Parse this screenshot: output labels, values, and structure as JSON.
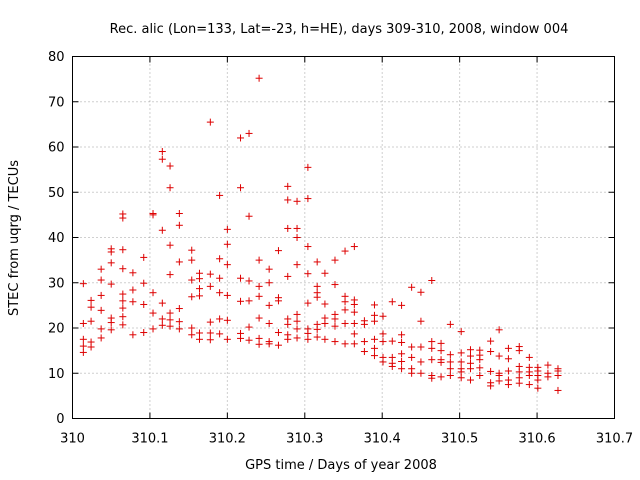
{
  "chart_data": {
    "type": "scatter",
    "title": "Rec. alic (Lon=133, Lat=-23, h=HE), days 309-310, 2008, window 004",
    "xlabel": "GPS time / Days of year 2008",
    "ylabel": "STEC from uqrg / TECUs",
    "xlim": [
      310,
      310.7
    ],
    "ylim": [
      0,
      80
    ],
    "xticks": [
      310,
      310.1,
      310.2,
      310.3,
      310.4,
      310.5,
      310.6,
      310.7
    ],
    "xtick_labels": [
      "310",
      "310.1",
      "310.2",
      "310.3",
      "310.4",
      "310.5",
      "310.6",
      "310.7"
    ],
    "yticks": [
      0,
      10,
      20,
      30,
      40,
      50,
      60,
      70,
      80
    ],
    "ytick_labels": [
      "0",
      "10",
      "20",
      "30",
      "40",
      "50",
      "60",
      "70",
      "80"
    ],
    "grid": true,
    "marker": "plus",
    "color": "#dd0000",
    "series": [
      {
        "name": "STEC",
        "points": [
          [
            310.014,
            29.8
          ],
          [
            310.014,
            21.0
          ],
          [
            310.014,
            17.5
          ],
          [
            310.014,
            16.0
          ],
          [
            310.014,
            14.6
          ],
          [
            310.024,
            26.1
          ],
          [
            310.024,
            24.6
          ],
          [
            310.024,
            21.5
          ],
          [
            310.024,
            16.9
          ],
          [
            310.024,
            15.8
          ],
          [
            310.037,
            33.0
          ],
          [
            310.037,
            30.6
          ],
          [
            310.037,
            27.2
          ],
          [
            310.037,
            23.9
          ],
          [
            310.037,
            19.8
          ],
          [
            310.037,
            17.8
          ],
          [
            310.05,
            37.5
          ],
          [
            310.05,
            36.8
          ],
          [
            310.05,
            34.4
          ],
          [
            310.05,
            29.7
          ],
          [
            310.05,
            22.2
          ],
          [
            310.05,
            21.2
          ],
          [
            310.05,
            19.6
          ],
          [
            310.065,
            45.2
          ],
          [
            310.065,
            44.3
          ],
          [
            310.065,
            37.3
          ],
          [
            310.065,
            33.1
          ],
          [
            310.065,
            27.5
          ],
          [
            310.065,
            26.0
          ],
          [
            310.065,
            24.4
          ],
          [
            310.065,
            22.5
          ],
          [
            310.065,
            20.7
          ],
          [
            310.078,
            32.2
          ],
          [
            310.078,
            28.4
          ],
          [
            310.078,
            25.8
          ],
          [
            310.078,
            18.5
          ],
          [
            310.092,
            35.6
          ],
          [
            310.092,
            29.9
          ],
          [
            310.092,
            25.2
          ],
          [
            310.092,
            19.0
          ],
          [
            310.104,
            45.3
          ],
          [
            310.104,
            45.0
          ],
          [
            310.104,
            27.8
          ],
          [
            310.104,
            23.3
          ],
          [
            310.104,
            19.8
          ],
          [
            310.116,
            59.0
          ],
          [
            310.116,
            57.3
          ],
          [
            310.116,
            41.6
          ],
          [
            310.116,
            25.5
          ],
          [
            310.116,
            22.0
          ],
          [
            310.116,
            20.6
          ],
          [
            310.126,
            55.8
          ],
          [
            310.126,
            51.0
          ],
          [
            310.126,
            38.3
          ],
          [
            310.126,
            31.8
          ],
          [
            310.126,
            23.3
          ],
          [
            310.126,
            21.8
          ],
          [
            310.126,
            20.4
          ],
          [
            310.138,
            45.3
          ],
          [
            310.138,
            42.7
          ],
          [
            310.138,
            34.6
          ],
          [
            310.138,
            24.3
          ],
          [
            310.138,
            21.4
          ],
          [
            310.138,
            19.8
          ],
          [
            310.154,
            37.2
          ],
          [
            310.154,
            35.0
          ],
          [
            310.154,
            30.6
          ],
          [
            310.154,
            26.9
          ],
          [
            310.154,
            20.0
          ],
          [
            310.154,
            18.5
          ],
          [
            310.164,
            32.1
          ],
          [
            310.164,
            30.9
          ],
          [
            310.164,
            28.7
          ],
          [
            310.164,
            27.1
          ],
          [
            310.164,
            18.9
          ],
          [
            310.164,
            17.5
          ],
          [
            310.178,
            65.5
          ],
          [
            310.178,
            31.9
          ],
          [
            310.178,
            29.2
          ],
          [
            310.178,
            21.3
          ],
          [
            310.178,
            18.9
          ],
          [
            310.178,
            17.4
          ],
          [
            310.19,
            49.3
          ],
          [
            310.19,
            35.3
          ],
          [
            310.19,
            31.0
          ],
          [
            310.19,
            27.8
          ],
          [
            310.19,
            22.0
          ],
          [
            310.19,
            18.7
          ],
          [
            310.2,
            41.8
          ],
          [
            310.2,
            38.5
          ],
          [
            310.2,
            34.0
          ],
          [
            310.2,
            27.2
          ],
          [
            310.2,
            21.7
          ],
          [
            310.2,
            17.5
          ],
          [
            310.217,
            62.0
          ],
          [
            310.217,
            51.0
          ],
          [
            310.217,
            31.0
          ],
          [
            310.217,
            25.9
          ],
          [
            310.217,
            18.8
          ],
          [
            310.217,
            17.7
          ],
          [
            310.228,
            63.0
          ],
          [
            310.228,
            44.7
          ],
          [
            310.228,
            30.4
          ],
          [
            310.228,
            26.0
          ],
          [
            310.228,
            20.2
          ],
          [
            310.228,
            17.3
          ],
          [
            310.241,
            75.2
          ],
          [
            310.241,
            35.0
          ],
          [
            310.241,
            29.2
          ],
          [
            310.241,
            27.0
          ],
          [
            310.241,
            22.2
          ],
          [
            310.241,
            17.7
          ],
          [
            310.241,
            16.4
          ],
          [
            310.254,
            33.0
          ],
          [
            310.254,
            30.0
          ],
          [
            310.254,
            25.0
          ],
          [
            310.254,
            21.0
          ],
          [
            310.254,
            17.0
          ],
          [
            310.254,
            16.5
          ],
          [
            310.266,
            37.1
          ],
          [
            310.266,
            26.7
          ],
          [
            310.266,
            26.0
          ],
          [
            310.266,
            19.0
          ],
          [
            310.266,
            16.2
          ],
          [
            310.278,
            51.3
          ],
          [
            310.278,
            48.3
          ],
          [
            310.278,
            42.0
          ],
          [
            310.278,
            31.4
          ],
          [
            310.278,
            22.0
          ],
          [
            310.278,
            20.8
          ],
          [
            310.278,
            18.5
          ],
          [
            310.278,
            17.5
          ],
          [
            310.29,
            48.0
          ],
          [
            310.29,
            42.0
          ],
          [
            310.29,
            40.0
          ],
          [
            310.29,
            34.0
          ],
          [
            310.29,
            23.0
          ],
          [
            310.29,
            21.5
          ],
          [
            310.29,
            19.8
          ],
          [
            310.29,
            17.8
          ],
          [
            310.304,
            55.5
          ],
          [
            310.304,
            48.6
          ],
          [
            310.304,
            38.0
          ],
          [
            310.304,
            32.0
          ],
          [
            310.304,
            25.5
          ],
          [
            310.304,
            19.8
          ],
          [
            310.304,
            18.8
          ],
          [
            310.304,
            17.5
          ],
          [
            310.316,
            34.6
          ],
          [
            310.316,
            29.2
          ],
          [
            310.316,
            27.8
          ],
          [
            310.316,
            26.8
          ],
          [
            310.316,
            20.8
          ],
          [
            310.316,
            19.7
          ],
          [
            310.316,
            18.0
          ],
          [
            310.326,
            32.1
          ],
          [
            310.326,
            25.3
          ],
          [
            310.326,
            22.2
          ],
          [
            310.326,
            21.0
          ],
          [
            310.326,
            17.5
          ],
          [
            310.339,
            35.0
          ],
          [
            310.339,
            29.6
          ],
          [
            310.339,
            23.0
          ],
          [
            310.339,
            22.0
          ],
          [
            310.339,
            20.4
          ],
          [
            310.339,
            17.0
          ],
          [
            310.352,
            37.0
          ],
          [
            310.352,
            27.0
          ],
          [
            310.352,
            25.8
          ],
          [
            310.352,
            24.0
          ],
          [
            310.352,
            21.0
          ],
          [
            310.352,
            16.5
          ],
          [
            310.364,
            38.0
          ],
          [
            310.364,
            26.2
          ],
          [
            310.364,
            25.2
          ],
          [
            310.364,
            23.5
          ],
          [
            310.364,
            21.0
          ],
          [
            310.364,
            18.7
          ],
          [
            310.364,
            16.5
          ],
          [
            310.377,
            21.6
          ],
          [
            310.377,
            20.8
          ],
          [
            310.377,
            17.0
          ],
          [
            310.377,
            14.8
          ],
          [
            310.39,
            25.1
          ],
          [
            310.39,
            22.8
          ],
          [
            310.39,
            21.5
          ],
          [
            310.39,
            17.5
          ],
          [
            310.39,
            15.5
          ],
          [
            310.39,
            13.9
          ],
          [
            310.401,
            22.6
          ],
          [
            310.401,
            18.7
          ],
          [
            310.401,
            17.0
          ],
          [
            310.401,
            13.5
          ],
          [
            310.401,
            12.5
          ],
          [
            310.413,
            25.8
          ],
          [
            310.413,
            17.1
          ],
          [
            310.413,
            13.5
          ],
          [
            310.413,
            12.2
          ],
          [
            310.413,
            11.5
          ],
          [
            310.425,
            25.0
          ],
          [
            310.425,
            18.5
          ],
          [
            310.425,
            16.8
          ],
          [
            310.425,
            14.3
          ],
          [
            310.425,
            12.6
          ],
          [
            310.425,
            11.0
          ],
          [
            310.438,
            29.0
          ],
          [
            310.438,
            15.8
          ],
          [
            310.438,
            13.5
          ],
          [
            310.438,
            11.0
          ],
          [
            310.438,
            10.0
          ],
          [
            310.45,
            27.9
          ],
          [
            310.45,
            21.5
          ],
          [
            310.45,
            15.8
          ],
          [
            310.45,
            12.5
          ],
          [
            310.45,
            10.0
          ],
          [
            310.464,
            30.5
          ],
          [
            310.464,
            17.0
          ],
          [
            310.464,
            15.5
          ],
          [
            310.464,
            13.0
          ],
          [
            310.464,
            9.5
          ],
          [
            310.464,
            8.9
          ],
          [
            310.476,
            16.6
          ],
          [
            310.476,
            15.0
          ],
          [
            310.476,
            13.0
          ],
          [
            310.476,
            12.4
          ],
          [
            310.476,
            9.2
          ],
          [
            310.488,
            20.8
          ],
          [
            310.488,
            14.1
          ],
          [
            310.488,
            12.5
          ],
          [
            310.488,
            11.0
          ],
          [
            310.488,
            9.5
          ],
          [
            310.502,
            19.2
          ],
          [
            310.502,
            14.5
          ],
          [
            310.502,
            12.5
          ],
          [
            310.502,
            11.0
          ],
          [
            310.502,
            10.3
          ],
          [
            310.502,
            9.0
          ],
          [
            310.514,
            15.2
          ],
          [
            310.514,
            13.8
          ],
          [
            310.514,
            12.2
          ],
          [
            310.514,
            11.0
          ],
          [
            310.514,
            8.5
          ],
          [
            310.526,
            15.1
          ],
          [
            310.526,
            14.0
          ],
          [
            310.526,
            13.0
          ],
          [
            310.526,
            11.2
          ],
          [
            310.526,
            9.5
          ],
          [
            310.54,
            17.1
          ],
          [
            310.54,
            14.8
          ],
          [
            310.54,
            10.4
          ],
          [
            310.54,
            7.9
          ],
          [
            310.54,
            7.2
          ],
          [
            310.551,
            19.6
          ],
          [
            310.551,
            13.8
          ],
          [
            310.551,
            10.0
          ],
          [
            310.551,
            9.5
          ],
          [
            310.551,
            8.3
          ],
          [
            310.563,
            15.5
          ],
          [
            310.563,
            13.2
          ],
          [
            310.563,
            10.5
          ],
          [
            310.563,
            8.5
          ],
          [
            310.563,
            7.5
          ],
          [
            310.577,
            15.9
          ],
          [
            310.577,
            15.0
          ],
          [
            310.577,
            11.5
          ],
          [
            310.577,
            10.3
          ],
          [
            310.577,
            9.0
          ],
          [
            310.577,
            7.8
          ],
          [
            310.59,
            13.5
          ],
          [
            310.59,
            11.3
          ],
          [
            310.59,
            10.3
          ],
          [
            310.59,
            9.5
          ],
          [
            310.59,
            7.5
          ],
          [
            310.601,
            11.3
          ],
          [
            310.601,
            10.5
          ],
          [
            310.601,
            9.5
          ],
          [
            310.601,
            8.5
          ],
          [
            310.601,
            6.7
          ],
          [
            310.614,
            11.8
          ],
          [
            310.614,
            10.0
          ],
          [
            310.614,
            9.2
          ],
          [
            310.627,
            11.0
          ],
          [
            310.627,
            10.5
          ],
          [
            310.627,
            9.5
          ],
          [
            310.627,
            6.2
          ]
        ]
      }
    ]
  }
}
